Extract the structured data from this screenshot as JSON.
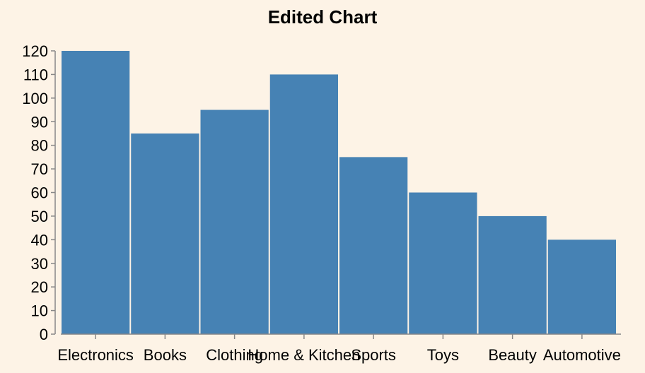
{
  "chart_data": {
    "type": "bar",
    "title": "Edited Chart",
    "xlabel": "",
    "ylabel": "",
    "categories": [
      "Electronics",
      "Books",
      "Clothing",
      "Home & Kitchen",
      "Sports",
      "Toys",
      "Beauty",
      "Automotive"
    ],
    "values": [
      120,
      85,
      95,
      110,
      75,
      60,
      50,
      40
    ],
    "ylim": [
      0,
      120
    ],
    "yticks": [
      0,
      10,
      20,
      30,
      40,
      50,
      60,
      70,
      80,
      90,
      100,
      110,
      120
    ],
    "grid": false,
    "colors": {
      "bar": "#4682b4",
      "background": "#fdf3e6",
      "axis": "#888888"
    }
  }
}
